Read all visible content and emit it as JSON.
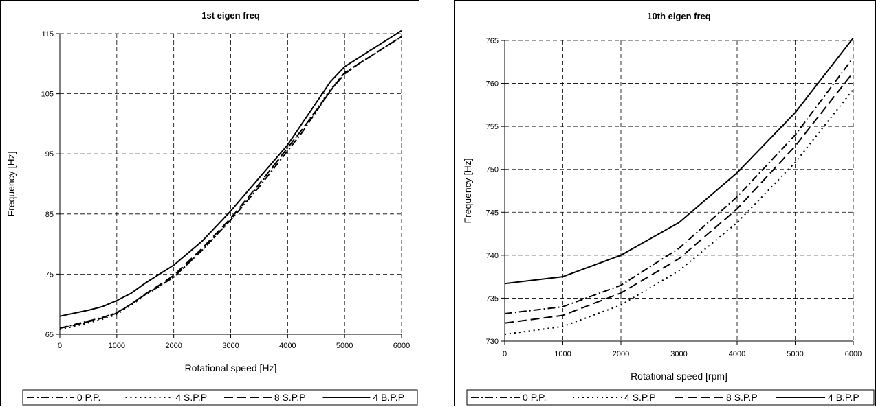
{
  "chart_data": [
    {
      "type": "line",
      "title": "1st eigen freq",
      "xlabel": "Rotational speed [Hz]",
      "ylabel": "Frequency [Hz]",
      "xlim": [
        0,
        6000
      ],
      "ylim": [
        65,
        115
      ],
      "x_ticks": [
        "0",
        "1000",
        "2000",
        "3000",
        "4000",
        "5000",
        "6000"
      ],
      "y_ticks": [
        "65",
        "75",
        "85",
        "95",
        "105",
        "115"
      ],
      "grid": true,
      "legend_position": "bottom",
      "series": [
        {
          "name": "0 P.P.",
          "style": "dashdot",
          "x": [
            0,
            250,
            500,
            750,
            1000,
            1250,
            1500,
            1750,
            2000,
            2500,
            3000,
            3500,
            4000,
            4250,
            4500,
            4750,
            5000,
            5250,
            5500,
            5750,
            6000
          ],
          "y": [
            66.0,
            66.6,
            67.2,
            67.8,
            68.6,
            70.0,
            71.6,
            73.0,
            74.5,
            79.0,
            84.0,
            89.5,
            95.5,
            98.5,
            102.0,
            105.5,
            108.5,
            110.0,
            111.5,
            113.0,
            114.5
          ]
        },
        {
          "name": "4 S.P.P",
          "style": "dotted",
          "x": [
            0,
            250,
            500,
            750,
            1000,
            1250,
            1500,
            1750,
            2000,
            2500,
            3000,
            3500,
            4000,
            4250,
            4500,
            4750,
            5000,
            5250,
            5500,
            5750,
            6000
          ],
          "y": [
            65.8,
            66.3,
            66.9,
            67.5,
            68.3,
            69.8,
            71.5,
            73.0,
            74.5,
            79.0,
            84.0,
            89.8,
            96.0,
            99.0,
            102.3,
            105.7,
            108.5,
            110.0,
            111.5,
            113.0,
            114.5
          ]
        },
        {
          "name": "8 S.P.P",
          "style": "dashed",
          "x": [
            0,
            250,
            500,
            750,
            1000,
            1250,
            1500,
            1750,
            2000,
            2500,
            3000,
            3500,
            4000,
            4250,
            4500,
            4750,
            5000,
            5250,
            5500,
            5750,
            6000
          ],
          "y": [
            66.0,
            66.5,
            67.1,
            67.7,
            68.5,
            70.0,
            71.7,
            73.2,
            74.8,
            79.3,
            84.3,
            90.0,
            96.0,
            99.0,
            102.2,
            105.5,
            108.3,
            110.0,
            111.5,
            113.0,
            114.5
          ]
        },
        {
          "name": "4 B.P.P",
          "style": "solid",
          "x": [
            0,
            250,
            500,
            750,
            1000,
            1250,
            1500,
            1750,
            2000,
            2500,
            3000,
            3500,
            4000,
            4250,
            4500,
            4750,
            5000,
            5250,
            5500,
            5750,
            6000
          ],
          "y": [
            68.0,
            68.5,
            69.0,
            69.6,
            70.6,
            71.8,
            73.5,
            75.0,
            76.5,
            80.5,
            85.5,
            91.0,
            96.5,
            100.0,
            103.5,
            107.0,
            109.5,
            111.0,
            112.5,
            114.0,
            115.5
          ]
        }
      ]
    },
    {
      "type": "line",
      "title": "10th eigen freq",
      "xlabel": "Rotational speed [rpm]",
      "ylabel": "Frequency [Hz]",
      "xlim": [
        0,
        6000
      ],
      "ylim": [
        730,
        765
      ],
      "x_ticks": [
        "0",
        "1000",
        "2000",
        "3000",
        "4000",
        "5000",
        "6000"
      ],
      "y_ticks": [
        "730",
        "735",
        "740",
        "745",
        "750",
        "755",
        "760",
        "765"
      ],
      "grid": true,
      "legend_position": "bottom",
      "series": [
        {
          "name": "0 P.P.",
          "style": "dashdot",
          "x": [
            0,
            1000,
            2000,
            3000,
            4000,
            5000,
            6000
          ],
          "y": [
            733.2,
            734.0,
            736.5,
            740.8,
            746.8,
            754.0,
            763.0
          ]
        },
        {
          "name": "4 S.P.P",
          "style": "dotted",
          "x": [
            0,
            1000,
            2000,
            3000,
            4000,
            5000,
            6000
          ],
          "y": [
            730.8,
            731.7,
            734.2,
            738.2,
            743.8,
            750.8,
            759.3
          ]
        },
        {
          "name": "8 S.P.P",
          "style": "dashed",
          "x": [
            0,
            1000,
            2000,
            3000,
            4000,
            5000,
            6000
          ],
          "y": [
            732.1,
            733.0,
            735.6,
            739.6,
            745.4,
            752.7,
            761.3
          ]
        },
        {
          "name": "4 B.P.P",
          "style": "solid",
          "x": [
            0,
            1000,
            2000,
            3000,
            4000,
            5000,
            6000
          ],
          "y": [
            736.7,
            737.5,
            740.0,
            743.8,
            749.6,
            756.6,
            765.3
          ]
        }
      ]
    }
  ]
}
